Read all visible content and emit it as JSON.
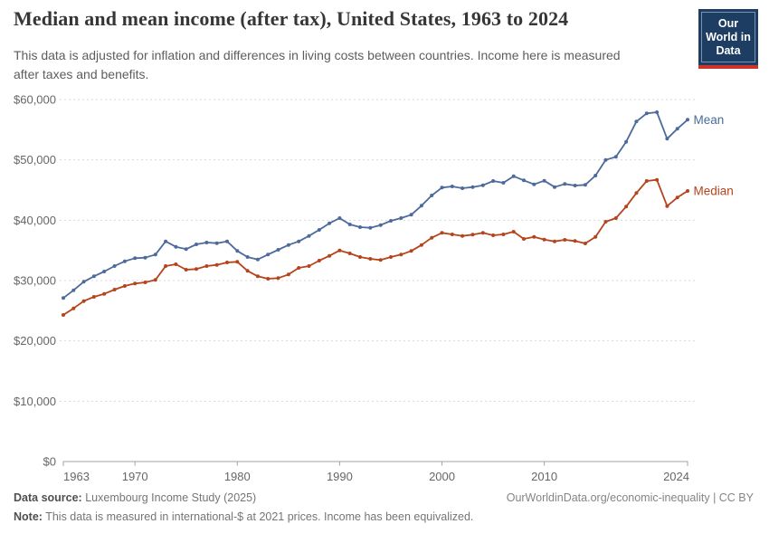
{
  "header": {
    "title": "Median and mean income (after tax), United States, 1963 to 2024",
    "subtitle_line1": "This data is adjusted for inflation and differences in living costs between countries. Income here is measured",
    "subtitle_line2": "after taxes and benefits.",
    "logo": {
      "line1": "Our World",
      "line2": "in Data",
      "bg_color": "#1d3d63",
      "bar_color": "#cf342c"
    }
  },
  "chart_data": {
    "type": "line",
    "title": "Median and mean income (after tax), United States, 1963 to 2024",
    "xlabel": "",
    "ylabel": "",
    "ylim": [
      0,
      60000
    ],
    "ytick_step": 10000,
    "ytick_labels": [
      "$0",
      "$10,000",
      "$20,000",
      "$30,000",
      "$40,000",
      "$50,000",
      "$60,000"
    ],
    "xticks": [
      1963,
      1970,
      1980,
      1990,
      2000,
      2010,
      2024
    ],
    "grid": "horizontal-dashed",
    "legend_position": "right-of-line-end",
    "x": [
      1963,
      1964,
      1965,
      1966,
      1967,
      1968,
      1969,
      1970,
      1971,
      1972,
      1973,
      1974,
      1975,
      1976,
      1977,
      1978,
      1979,
      1980,
      1981,
      1982,
      1983,
      1984,
      1985,
      1986,
      1987,
      1988,
      1989,
      1990,
      1991,
      1992,
      1993,
      1994,
      1995,
      1996,
      1997,
      1998,
      1999,
      2000,
      2001,
      2002,
      2003,
      2004,
      2005,
      2006,
      2007,
      2008,
      2009,
      2010,
      2011,
      2012,
      2013,
      2014,
      2015,
      2016,
      2017,
      2018,
      2019,
      2020,
      2021,
      2022,
      2023,
      2024
    ],
    "series": [
      {
        "name": "Mean",
        "color": "#4C6A9C",
        "values": [
          27100,
          28400,
          29800,
          30700,
          31500,
          32400,
          33200,
          33700,
          33800,
          34300,
          36500,
          35600,
          35200,
          36000,
          36300,
          36200,
          36500,
          34900,
          33900,
          33500,
          34300,
          35100,
          35900,
          36500,
          37400,
          38400,
          39500,
          40350,
          39300,
          38850,
          38750,
          39200,
          39900,
          40350,
          40900,
          42400,
          44100,
          45400,
          45600,
          45300,
          45500,
          45800,
          46500,
          46200,
          47300,
          46600,
          45950,
          46550,
          45500,
          46000,
          45750,
          45850,
          47400,
          50000,
          50500,
          53000,
          56350,
          57700,
          57900,
          53500,
          55150,
          56650
        ]
      },
      {
        "name": "Median",
        "color": "#B5431C",
        "values": [
          24300,
          25400,
          26600,
          27300,
          27800,
          28500,
          29100,
          29500,
          29700,
          30100,
          32400,
          32700,
          31800,
          31900,
          32400,
          32600,
          33000,
          33100,
          31600,
          30700,
          30300,
          30400,
          31000,
          32100,
          32400,
          33300,
          34100,
          35000,
          34500,
          33900,
          33600,
          33400,
          33900,
          34300,
          34900,
          35900,
          37100,
          37900,
          37650,
          37400,
          37600,
          37900,
          37500,
          37650,
          38100,
          36900,
          37250,
          36800,
          36500,
          36750,
          36550,
          36150,
          37250,
          39750,
          40350,
          42250,
          44500,
          46500,
          46700,
          42350,
          43750,
          44850
        ]
      }
    ],
    "axis_color": "#a3a3a3",
    "grid_color": "#dadada",
    "tick_text_color": "#666666"
  },
  "footer": {
    "source_label": "Data source:",
    "source_value": "Luxembourg Income Study (2025)",
    "link": "OurWorldinData.org/economic-inequality | CC BY",
    "note_label": "Note:",
    "note_value": "This data is measured in international-$ at 2021 prices. Income has been equivalized."
  }
}
